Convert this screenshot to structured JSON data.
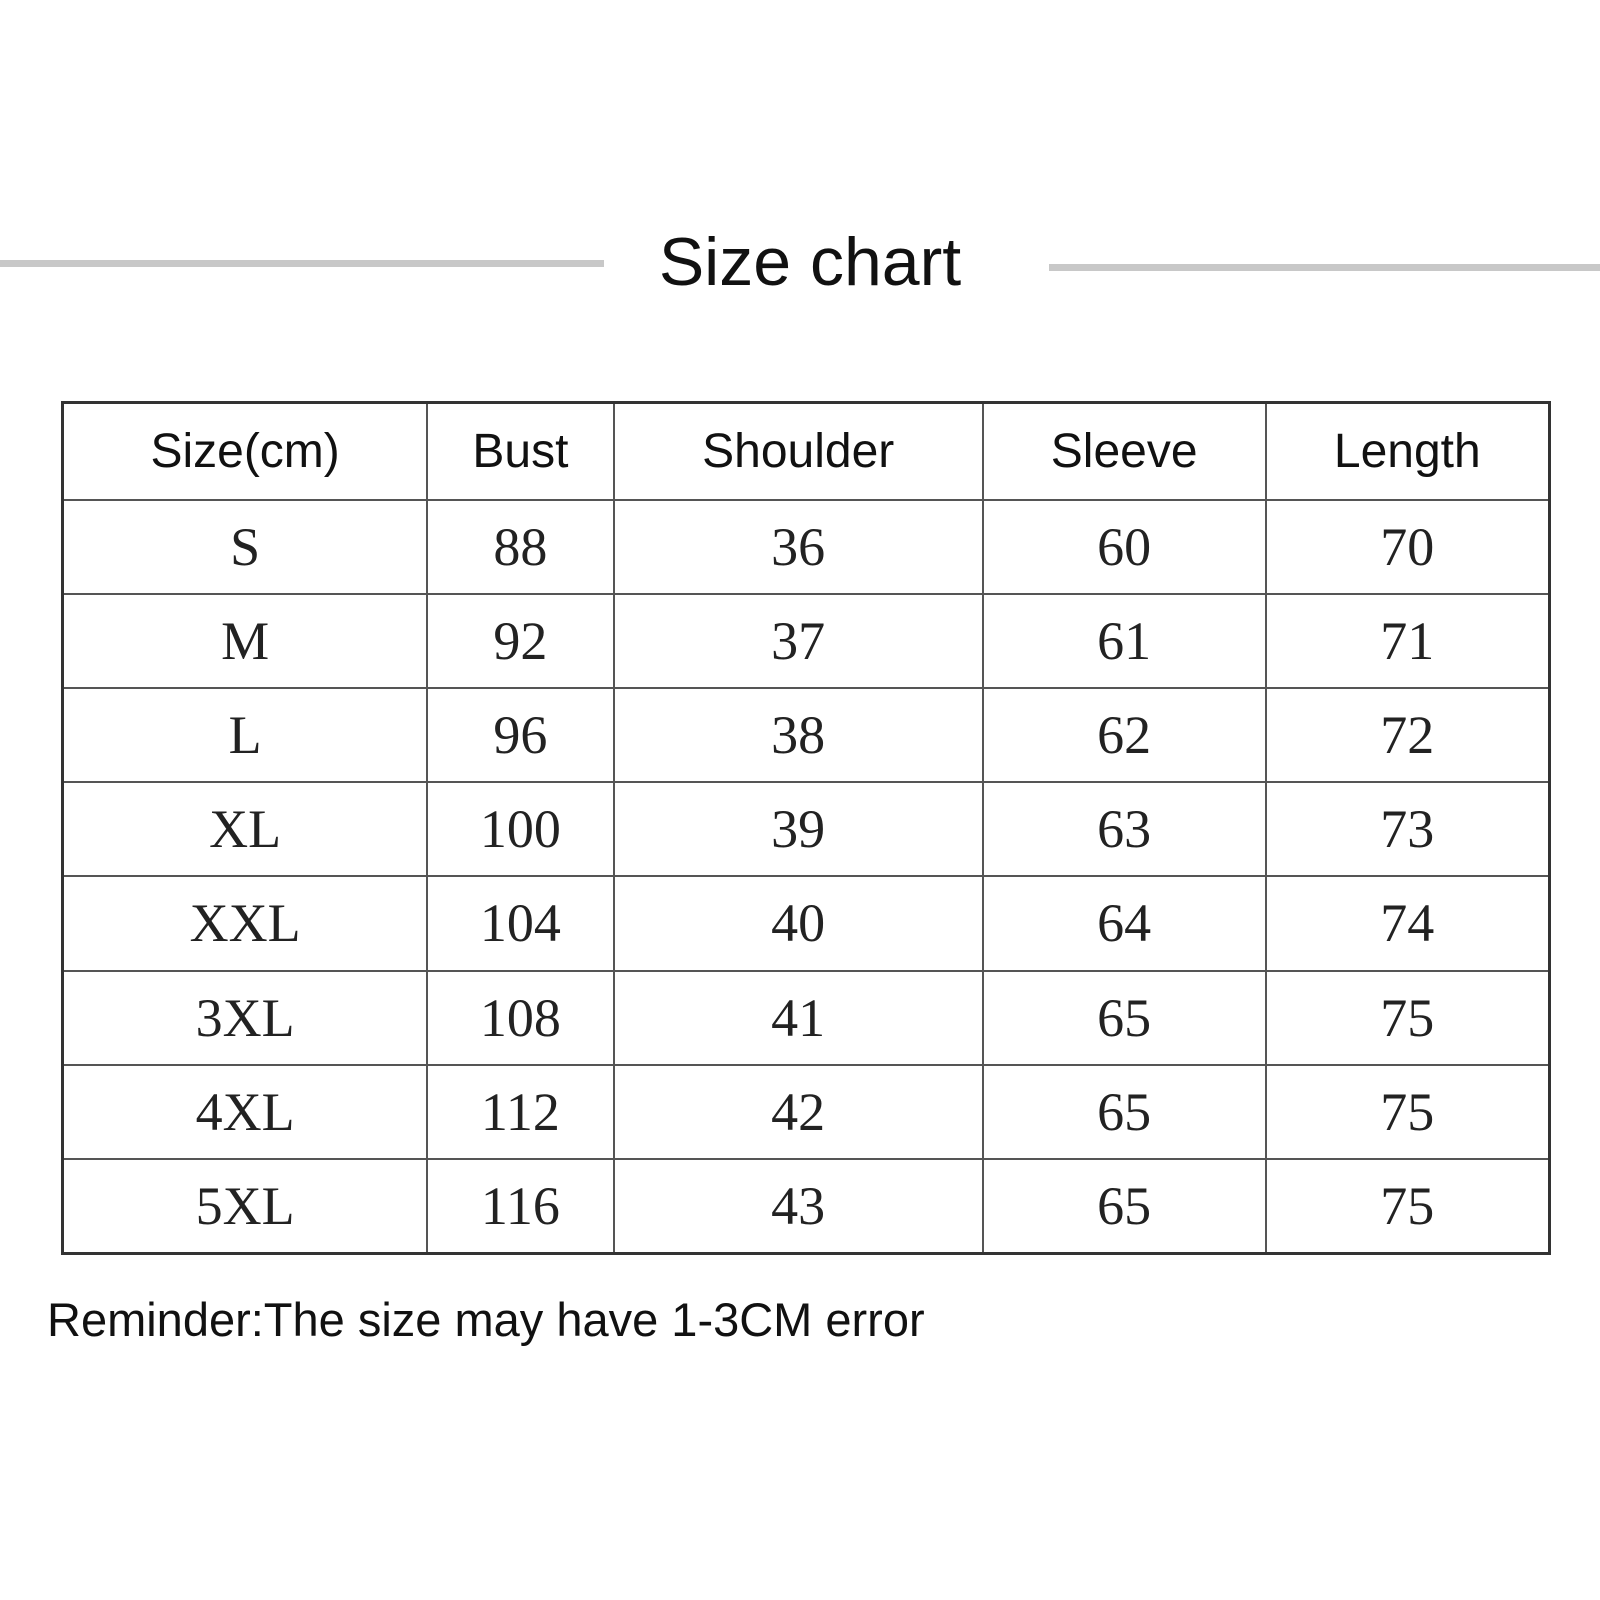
{
  "title": "Size chart",
  "table": {
    "headers": [
      "Size(cm)",
      "Bust",
      "Shoulder",
      "Sleeve",
      "Length"
    ],
    "rows": [
      [
        "S",
        "88",
        "36",
        "60",
        "70"
      ],
      [
        "M",
        "92",
        "37",
        "61",
        "71"
      ],
      [
        "L",
        "96",
        "38",
        "62",
        "72"
      ],
      [
        "XL",
        "100",
        "39",
        "63",
        "73"
      ],
      [
        "XXL",
        "104",
        "40",
        "64",
        "74"
      ],
      [
        "3XL",
        "108",
        "41",
        "65",
        "75"
      ],
      [
        "4XL",
        "112",
        "42",
        "65",
        "75"
      ],
      [
        "5XL",
        "116",
        "43",
        "65",
        "75"
      ]
    ]
  },
  "reminder": "Reminder:The size may have 1-3CM error"
}
